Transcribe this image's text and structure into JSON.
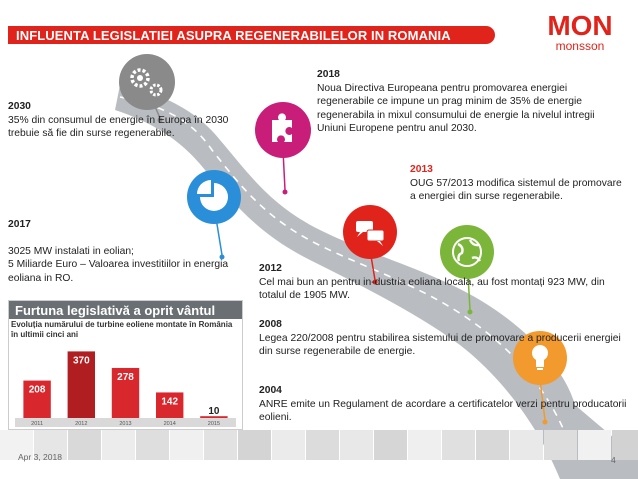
{
  "title": "INFLUENTA LEGISLATIEI ASUPRA REGENERABILELOR IN ROMANIA",
  "logo": {
    "top_text": "MON",
    "bottom_text": "monsson"
  },
  "timeline": [
    {
      "year": "2030",
      "text": "35% din consumul de energie în Europa în 2030 trebuie să fie din surse regenerabile.",
      "icon": "gears-icon",
      "color": "#8a8a8a"
    },
    {
      "year": "2018",
      "text": "Noua Directiva Europeana pentru promovarea energiei regenerabile ce impune un prag minim de 35% de energie regenerabila in mixul consumului de energie la nivelul intregii Uniuni Europene pentru anul 2030.",
      "icon": "puzzle-icon",
      "color": "#c81e7a"
    },
    {
      "year": "2017",
      "text": "3025 MW instalati in eolian;\n5 Miliarde Euro – Valoarea investitiilor in energia eoliana in RO.",
      "icon": "pie-icon",
      "color": "#2a8fd8"
    },
    {
      "year": "2013",
      "text": "OUG 57/2013 modifica sistemul de promovare a energiei din surse regenerabile.",
      "icon": "speech-bubbles-icon",
      "color": "#e0241b"
    },
    {
      "year": "2012",
      "text": "Cel mai bun an pentru in-dustria eoliana locala, au fost montați 923 MW, din totalul de 1905 MW.",
      "icon": "globe-icon",
      "color": "#7bb63a"
    },
    {
      "year": "2008",
      "text": "Legea 220/2008 pentru stabilirea sistemului de promovare a producerii energiei din surse regenerabile de energie.",
      "icon": "lightbulb-icon",
      "color": "#f29a2e"
    },
    {
      "year": "2004",
      "text": "ANRE emite un Regulament de acordare a certificatelor verzi pentru producatorii eolieni."
    }
  ],
  "newspaper_chart": {
    "headline": "Furtuna legislativă a oprit vântul",
    "subheadline": "Evoluția numărului de turbine eoliene montate în România în ultimii cinci ani"
  },
  "chart_data": {
    "type": "bar",
    "title": "Evoluția numărului de turbine eoliene montate în România în ultimii cinci ani",
    "categories": [
      "2011",
      "2012",
      "2013",
      "2014",
      "2015"
    ],
    "values": [
      208,
      370,
      278,
      142,
      10
    ],
    "ylim": [
      0,
      400
    ],
    "highlight_index": 1,
    "colors": {
      "bar": "#d8272d",
      "highlight": "#b01e22"
    }
  },
  "footer": {
    "date": "Apr 3, 2018",
    "page": "4"
  },
  "colors": {
    "accent": "#e0241b",
    "road": "#8f9296"
  }
}
